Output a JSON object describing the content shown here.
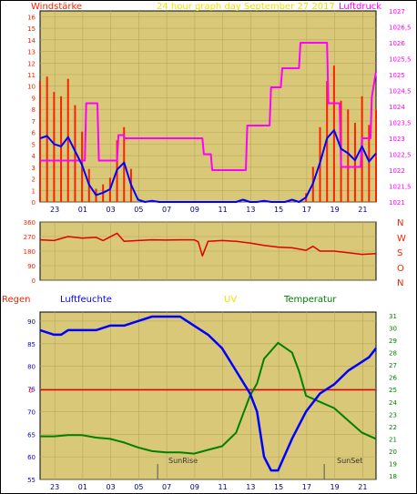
{
  "header": {
    "left_label": "Windstärke",
    "center_label": "24 hour graph day   September 27 2017",
    "right_label": "Luftdruck"
  },
  "panel2": {
    "compass_labels": [
      "N",
      "W",
      "S",
      "O",
      "N"
    ]
  },
  "panel3": {
    "labels": {
      "regen": "Regen",
      "luftfeuchte": "Luftfeuchte",
      "uv": "UV",
      "temperatur": "Temperatur"
    },
    "sunrise_label": "SunRise",
    "sunset_label": "SunSet"
  },
  "colors": {
    "wind_gust": "#ff2000",
    "wind_avg": "#0000ff",
    "pressure": "#ff00ff",
    "direction": "#e00000",
    "humidity": "#0000ff",
    "temperature": "#008000",
    "rain_line": "#e00000",
    "plot_bg": "#d8c878",
    "frame": "#000000"
  },
  "chart_data": [
    {
      "type": "line",
      "x_ticks": [
        "23",
        "01",
        "03",
        "05",
        "07",
        "09",
        "11",
        "13",
        "15",
        "17",
        "19",
        "21"
      ],
      "y_left": {
        "label": "Windstärke",
        "ticks": [
          "0",
          "1",
          "2",
          "3",
          "4",
          "5",
          "6",
          "7",
          "8",
          "9",
          "10",
          "11",
          "12",
          "13",
          "14",
          "15",
          "16"
        ],
        "ylim": [
          0,
          16.5
        ]
      },
      "y_right": {
        "label": "Luftdruck",
        "ticks": [
          "1021",
          "1021,5",
          "1022",
          "1022,5",
          "1023",
          "1023,5",
          "1024",
          "1024,5",
          "1025",
          "1025,5",
          "1026",
          "1026,5",
          "1027"
        ],
        "ylim": [
          1021,
          1027
        ]
      },
      "series": [
        {
          "name": "Windstärke",
          "x": [
            0,
            0.5,
            1,
            1.5,
            2,
            2.5,
            3,
            3.5,
            4,
            4.5,
            5,
            5.5,
            6,
            6.5,
            7,
            7.5,
            8,
            8.5,
            9,
            9.5,
            10,
            10.5,
            11,
            11.5,
            12,
            12.5,
            13,
            13.5,
            14,
            14.5,
            15,
            15.5,
            16,
            16.5,
            17,
            17.5,
            18,
            18.5,
            19,
            19.5,
            20,
            20.5,
            21,
            21.5,
            22,
            22.5,
            23,
            23.5,
            24
          ],
          "values": [
            5.5,
            5.7,
            5,
            4.8,
            5.6,
            4.4,
            3.2,
            1.5,
            0.6,
            0.8,
            1.1,
            2.8,
            3.4,
            1.5,
            0.2,
            0,
            0.1,
            0,
            0,
            0,
            0,
            0,
            0,
            0,
            0,
            0,
            0,
            0,
            0,
            0.2,
            0,
            0,
            0.1,
            0,
            0,
            0,
            0.2,
            0,
            0.4,
            1.6,
            3.4,
            5.5,
            6.2,
            4.6,
            4.2,
            3.6,
            4.8,
            3.5,
            4.2
          ]
        },
        {
          "name": "Luftdruck",
          "x": [
            0,
            3.2,
            3.3,
            4.1,
            4.2,
            5.5,
            5.6,
            6,
            6,
            11.6,
            11.7,
            12.2,
            12.3,
            14.7,
            14.8,
            16.4,
            16.5,
            17.2,
            17.3,
            18.5,
            18.6,
            20.5,
            20.6,
            21.4,
            21.5,
            22.9,
            23,
            23.6,
            23.7,
            24
          ],
          "values": [
            1022.3,
            1022.3,
            1024.1,
            1024.1,
            1022.3,
            1022.3,
            1023.1,
            1023.1,
            1023,
            1023,
            1022.5,
            1022.5,
            1022,
            1022,
            1023.4,
            1023.4,
            1024.6,
            1024.6,
            1025.2,
            1025.2,
            1026.0,
            1026.0,
            1024.1,
            1024.1,
            1022.1,
            1022.1,
            1023,
            1023,
            1024.3,
            1025.1
          ]
        }
      ]
    },
    {
      "type": "line",
      "x_ticks": [
        "23",
        "01",
        "03",
        "05",
        "07",
        "09",
        "11",
        "13",
        "15",
        "17",
        "19",
        "21"
      ],
      "y_left": {
        "ticks": [
          "0",
          "90",
          "180",
          "270",
          "360"
        ],
        "ylim": [
          0,
          360
        ]
      },
      "series": [
        {
          "name": "Windrichtung",
          "x": [
            0,
            1,
            2,
            3,
            4,
            4.5,
            5,
            5.5,
            6,
            7,
            8,
            9,
            10,
            11,
            11.3,
            11.6,
            12,
            13,
            14,
            15,
            16,
            17,
            18,
            19,
            19.5,
            20,
            21,
            22,
            23,
            24
          ],
          "values": [
            250,
            245,
            270,
            260,
            265,
            245,
            268,
            290,
            240,
            245,
            250,
            248,
            250,
            250,
            238,
            150,
            240,
            245,
            240,
            230,
            215,
            205,
            200,
            185,
            210,
            180,
            180,
            170,
            160,
            165
          ]
        }
      ]
    },
    {
      "type": "line",
      "x_ticks": [
        "23",
        "01",
        "03",
        "05",
        "07",
        "09",
        "11",
        "13",
        "15",
        "17",
        "19",
        "21"
      ],
      "y_left": {
        "label": "Luftfeuchte",
        "ticks": [
          "55",
          "60",
          "65",
          "70",
          "75",
          "80",
          "85",
          "90"
        ],
        "ylim": [
          55,
          92
        ]
      },
      "y_right": {
        "label": "Temperatur",
        "ticks": [
          "18",
          "19",
          "20",
          "21",
          "22",
          "23",
          "24",
          "25",
          "26",
          "27",
          "28",
          "29",
          "30",
          "31"
        ],
        "ylim": [
          17.7,
          31.3
        ]
      },
      "rain_label": "0",
      "series": [
        {
          "name": "Luftfeuchte",
          "x": [
            0,
            1,
            1.5,
            2,
            3,
            4,
            5,
            6,
            7,
            8,
            9,
            10,
            10.5,
            11,
            12,
            13,
            14,
            15,
            15.5,
            16,
            16.5,
            17,
            18,
            19,
            20,
            21,
            22,
            23,
            23.5,
            24
          ],
          "values": [
            88,
            87,
            87,
            88,
            88,
            88,
            89,
            89,
            90,
            91,
            91,
            91,
            90,
            89,
            87,
            84,
            79,
            74,
            70,
            60,
            57,
            57,
            64,
            70,
            74,
            76,
            79,
            81,
            82,
            84
          ]
        },
        {
          "name": "Temperatur",
          "x": [
            0,
            1,
            2,
            3,
            4,
            5,
            6,
            7,
            8,
            9,
            10,
            11,
            12,
            13,
            14,
            14.5,
            15,
            15.5,
            16,
            17,
            18,
            18.5,
            19,
            20,
            21,
            22,
            23,
            24
          ],
          "values": [
            21.2,
            21.2,
            21.3,
            21.3,
            21.1,
            21,
            20.7,
            20.3,
            20,
            19.9,
            19.9,
            19.8,
            20.1,
            20.4,
            21.5,
            23,
            24.5,
            25.5,
            27.5,
            28.8,
            28,
            26.5,
            24.5,
            24,
            23.5,
            22.5,
            21.5,
            21
          ]
        }
      ],
      "markers": [
        "SunRise",
        "SunSet"
      ]
    }
  ]
}
